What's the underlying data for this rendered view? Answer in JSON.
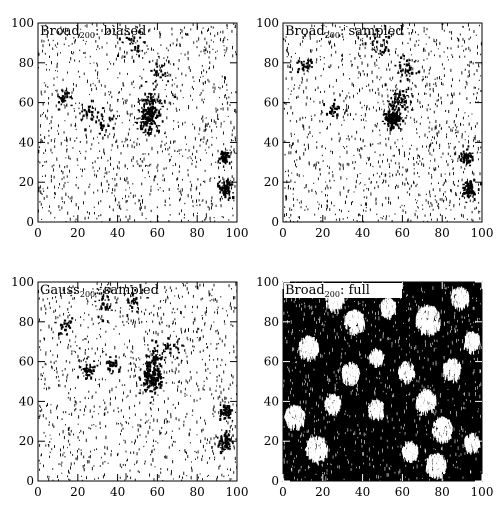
{
  "figure": {
    "background": "#ffffff",
    "foreground": "#000000"
  },
  "chart_data": [
    {
      "type": "scatter",
      "title_main": "Broad",
      "title_sub": "200",
      "title_rest": ": biased",
      "xlabel": "",
      "ylabel": "",
      "xlim": [
        0,
        100
      ],
      "ylim": [
        0,
        100
      ],
      "xticks": [
        0,
        20,
        40,
        60,
        80,
        100
      ],
      "yticks": [
        0,
        20,
        40,
        60,
        80,
        100
      ],
      "grid": false,
      "render": "sparse",
      "density": 1100,
      "point_color": "#000000",
      "clusters": [
        {
          "x": 55,
          "y": 53,
          "spread": 2.5,
          "count": 140
        },
        {
          "x": 57,
          "y": 61,
          "spread": 3.0,
          "count": 60
        },
        {
          "x": 93,
          "y": 33,
          "spread": 1.5,
          "count": 55
        },
        {
          "x": 94,
          "y": 17,
          "spread": 1.8,
          "count": 70
        },
        {
          "x": 12,
          "y": 63,
          "spread": 2.0,
          "count": 30
        },
        {
          "x": 25,
          "y": 55,
          "spread": 2.0,
          "count": 25
        },
        {
          "x": 60,
          "y": 76,
          "spread": 2.5,
          "count": 30
        },
        {
          "x": 47,
          "y": 90,
          "spread": 3.0,
          "count": 30
        },
        {
          "x": 33,
          "y": 50,
          "spread": 3.0,
          "count": 25
        }
      ]
    },
    {
      "type": "scatter",
      "title_main": "Broad",
      "title_sub": "200",
      "title_rest": ": sampled",
      "xlabel": "",
      "ylabel": "",
      "xlim": [
        0,
        100
      ],
      "ylim": [
        0,
        100
      ],
      "xticks": [
        0,
        20,
        40,
        60,
        80,
        100
      ],
      "yticks": [
        0,
        20,
        40,
        60,
        80,
        100
      ],
      "grid": false,
      "render": "sparse",
      "density": 1150,
      "point_color": "#000000",
      "clusters": [
        {
          "x": 55,
          "y": 53,
          "spread": 2.0,
          "count": 160
        },
        {
          "x": 58,
          "y": 62,
          "spread": 3.0,
          "count": 70
        },
        {
          "x": 62,
          "y": 78,
          "spread": 2.5,
          "count": 40
        },
        {
          "x": 92,
          "y": 33,
          "spread": 1.5,
          "count": 55
        },
        {
          "x": 93,
          "y": 17,
          "spread": 1.8,
          "count": 75
        },
        {
          "x": 10,
          "y": 80,
          "spread": 2.0,
          "count": 30
        },
        {
          "x": 25,
          "y": 57,
          "spread": 2.0,
          "count": 25
        },
        {
          "x": 47,
          "y": 90,
          "spread": 3.0,
          "count": 30
        }
      ]
    },
    {
      "type": "scatter",
      "title_main": "Gauss",
      "title_sub": "200",
      "title_rest": ": sampled",
      "xlabel": "",
      "ylabel": "",
      "xlim": [
        0,
        100
      ],
      "ylim": [
        0,
        100
      ],
      "xticks": [
        0,
        20,
        40,
        60,
        80,
        100
      ],
      "yticks": [
        0,
        20,
        40,
        60,
        80,
        100
      ],
      "grid": false,
      "render": "sparse",
      "density": 1100,
      "point_color": "#000000",
      "clusters": [
        {
          "x": 57,
          "y": 52,
          "spread": 2.5,
          "count": 150
        },
        {
          "x": 58,
          "y": 62,
          "spread": 3.0,
          "count": 60
        },
        {
          "x": 94,
          "y": 35,
          "spread": 1.5,
          "count": 55
        },
        {
          "x": 94,
          "y": 20,
          "spread": 1.8,
          "count": 70
        },
        {
          "x": 25,
          "y": 57,
          "spread": 2.0,
          "count": 40
        },
        {
          "x": 32,
          "y": 90,
          "spread": 2.5,
          "count": 35
        },
        {
          "x": 47,
          "y": 90,
          "spread": 2.5,
          "count": 30
        },
        {
          "x": 13,
          "y": 78,
          "spread": 2.0,
          "count": 25
        },
        {
          "x": 37,
          "y": 58,
          "spread": 2.0,
          "count": 30
        },
        {
          "x": 67,
          "y": 68,
          "spread": 2.0,
          "count": 25
        }
      ]
    },
    {
      "type": "scatter",
      "title_main": "Broad",
      "title_sub": "200",
      "title_rest": ": full",
      "xlabel": "",
      "ylabel": "",
      "xlim": [
        0,
        100
      ],
      "ylim": [
        0,
        100
      ],
      "xticks": [
        0,
        20,
        40,
        60,
        80,
        100
      ],
      "yticks": [
        0,
        20,
        40,
        60,
        80,
        100
      ],
      "grid": false,
      "render": "dense",
      "point_color": "#000000",
      "bright_patches": [
        {
          "x": 6,
          "y": 33,
          "r": 5.0
        },
        {
          "x": 17,
          "y": 17,
          "r": 5.5
        },
        {
          "x": 13,
          "y": 68,
          "r": 5.0
        },
        {
          "x": 26,
          "y": 92,
          "r": 4.5
        },
        {
          "x": 36,
          "y": 81,
          "r": 5.0
        },
        {
          "x": 34,
          "y": 55,
          "r": 4.5
        },
        {
          "x": 47,
          "y": 37,
          "r": 4.0
        },
        {
          "x": 62,
          "y": 56,
          "r": 4.0
        },
        {
          "x": 73,
          "y": 82,
          "r": 6.0
        },
        {
          "x": 72,
          "y": 41,
          "r": 5.0
        },
        {
          "x": 80,
          "y": 27,
          "r": 5.0
        },
        {
          "x": 85,
          "y": 57,
          "r": 4.5
        },
        {
          "x": 95,
          "y": 71,
          "r": 4.0
        },
        {
          "x": 89,
          "y": 93,
          "r": 4.5
        },
        {
          "x": 77,
          "y": 9,
          "r": 5.0
        },
        {
          "x": 64,
          "y": 16,
          "r": 4.0
        },
        {
          "x": 53,
          "y": 88,
          "r": 4.0
        },
        {
          "x": 47,
          "y": 63,
          "r": 3.5
        },
        {
          "x": 25,
          "y": 40,
          "r": 4.0
        },
        {
          "x": 95,
          "y": 20,
          "r": 4.0
        }
      ]
    }
  ]
}
